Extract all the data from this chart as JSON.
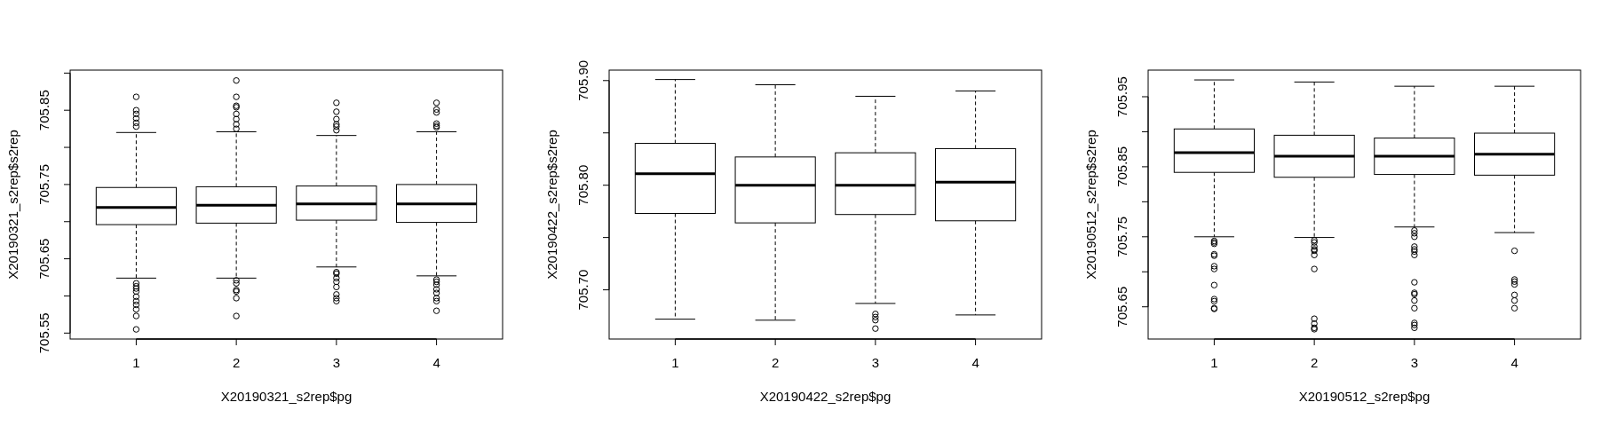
{
  "chart_data": [
    {
      "type": "box",
      "xlabel": "X20190321_s2rep$pg",
      "ylabel": "X20190321_s2rep$s2rep",
      "categories": [
        "1",
        "2",
        "3",
        "4"
      ],
      "ylim": [
        705.542,
        705.904
      ],
      "yticks": [
        705.55,
        {
          "value": 705.6,
          "label": null
        },
        705.65,
        {
          "value": 705.7,
          "label": null
        },
        705.75,
        {
          "value": 705.8,
          "label": null
        },
        705.85,
        {
          "value": 705.9,
          "label": null
        }
      ],
      "boxes": [
        {
          "low": 705.624,
          "q1": 705.696,
          "median": 705.719,
          "q3": 705.746,
          "high": 705.82,
          "outliers": [
            705.868,
            705.85,
            705.845,
            705.839,
            705.833,
            705.828,
            705.617,
            705.613,
            705.61,
            705.606,
            705.599,
            705.593,
            705.588,
            705.582,
            705.573,
            705.555
          ]
        },
        {
          "low": 705.624,
          "q1": 705.698,
          "median": 705.722,
          "q3": 705.747,
          "high": 705.821,
          "outliers": [
            705.89,
            705.868,
            705.856,
            705.854,
            705.845,
            705.838,
            705.831,
            705.825,
            705.621,
            705.617,
            705.608,
            705.606,
            705.597,
            705.573
          ]
        },
        {
          "low": 705.639,
          "q1": 705.702,
          "median": 705.724,
          "q3": 705.748,
          "high": 705.816,
          "outliers": [
            705.86,
            705.848,
            705.838,
            705.831,
            705.828,
            705.823,
            705.632,
            705.63,
            705.624,
            705.619,
            705.612,
            705.602,
            705.597,
            705.593
          ]
        },
        {
          "low": 705.627,
          "q1": 705.699,
          "median": 705.724,
          "q3": 705.75,
          "high": 705.821,
          "outliers": [
            705.86,
            705.851,
            705.847,
            705.832,
            705.829,
            705.827,
            705.622,
            705.619,
            705.615,
            705.609,
            705.604,
            705.597,
            705.593,
            705.58
          ]
        }
      ]
    },
    {
      "type": "box",
      "xlabel": "X20190422_s2rep$pg",
      "ylabel": "X20190422_s2rep$s2rep",
      "categories": [
        "1",
        "2",
        "3",
        "4"
      ],
      "ylim": [
        705.653,
        705.91
      ],
      "yticks": [
        {
          "value": 705.7,
          "label": "705.70"
        },
        {
          "value": 705.75,
          "label": null
        },
        {
          "value": 705.8,
          "label": "705.80"
        },
        {
          "value": 705.85,
          "label": null
        },
        {
          "value": 705.9,
          "label": "705.90"
        }
      ],
      "boxes": [
        {
          "low": 705.672,
          "q1": 705.773,
          "median": 705.811,
          "q3": 705.84,
          "high": 705.901
        },
        {
          "low": 705.671,
          "q1": 705.764,
          "median": 705.8,
          "q3": 705.827,
          "high": 705.896
        },
        {
          "low": 705.687,
          "q1": 705.772,
          "median": 705.8,
          "q3": 705.831,
          "high": 705.885,
          "outliers": [
            705.677,
            705.674,
            705.671,
            705.663
          ]
        },
        {
          "low": 705.676,
          "q1": 705.766,
          "median": 705.803,
          "q3": 705.835,
          "high": 705.89
        }
      ]
    },
    {
      "type": "box",
      "xlabel": "X20190512_s2rep$pg",
      "ylabel": "X20190512_s2rep$s2rep",
      "categories": [
        "1",
        "2",
        "3",
        "4"
      ],
      "ylim": [
        705.604,
        705.988
      ],
      "yticks": [
        705.65,
        {
          "value": 705.7,
          "label": null
        },
        705.75,
        {
          "value": 705.8,
          "label": null
        },
        705.85,
        {
          "value": 705.9,
          "label": null
        },
        705.95
      ],
      "boxes": [
        {
          "low": 705.75,
          "q1": 705.842,
          "median": 705.87,
          "q3": 705.904,
          "high": 705.974,
          "outliers": [
            705.744,
            705.742,
            705.74,
            705.725,
            705.723,
            705.708,
            705.704,
            705.681,
            705.661,
            705.658,
            705.648,
            705.647
          ]
        },
        {
          "low": 705.749,
          "q1": 705.835,
          "median": 705.865,
          "q3": 705.895,
          "high": 705.971,
          "outliers": [
            705.745,
            705.742,
            705.736,
            705.732,
            705.73,
            705.724,
            705.704,
            705.633,
            705.626,
            705.62,
            705.618
          ]
        },
        {
          "low": 705.764,
          "q1": 705.839,
          "median": 705.865,
          "q3": 705.891,
          "high": 705.965,
          "outliers": [
            705.759,
            705.755,
            705.75,
            705.736,
            705.732,
            705.729,
            705.724,
            705.685,
            705.67,
            705.668,
            705.659,
            705.648,
            705.627,
            705.624,
            705.62
          ]
        },
        {
          "low": 705.756,
          "q1": 705.838,
          "median": 705.868,
          "q3": 705.898,
          "high": 705.965,
          "outliers": [
            705.73,
            705.689,
            705.686,
            705.682,
            705.667,
            705.659,
            705.648
          ]
        }
      ]
    }
  ]
}
